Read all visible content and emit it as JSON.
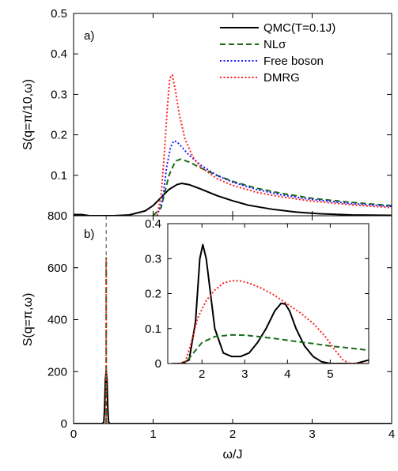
{
  "chart_data": [
    {
      "type": "line",
      "panel_label": "a)",
      "ylabel": "S(q=π/10,ω)",
      "xlim": [
        0,
        4
      ],
      "ylim": [
        0,
        0.5
      ],
      "xticks": [
        0,
        1,
        2,
        3,
        4
      ],
      "yticks": [
        0,
        0.1,
        0.2,
        0.3,
        0.4,
        0.5
      ],
      "ytick_labels": [
        "",
        "0.1",
        "0.2",
        "0.3",
        "0.4",
        "0.5"
      ],
      "legend_position": "top-right",
      "series": [
        {
          "name": "QMC(T=0.1J)",
          "color": "#000000",
          "style": "solid",
          "x": [
            0,
            0.1,
            0.2,
            0.3,
            0.5,
            0.7,
            0.9,
            1.0,
            1.1,
            1.2,
            1.3,
            1.36,
            1.45,
            1.6,
            1.8,
            2.0,
            2.2,
            2.5,
            2.8,
            3.1,
            3.5,
            4.0
          ],
          "y": [
            0.003,
            0.003,
            0.0,
            0.0,
            0.0,
            0.002,
            0.012,
            0.025,
            0.045,
            0.065,
            0.077,
            0.08,
            0.077,
            0.066,
            0.05,
            0.037,
            0.026,
            0.016,
            0.009,
            0.005,
            0.002,
            0.001
          ]
        },
        {
          "name": "NLσ",
          "color": "#1a6b1a",
          "style": "dashed",
          "x": [
            1.0,
            1.1,
            1.2,
            1.28,
            1.35,
            1.45,
            1.6,
            1.8,
            2.0,
            2.3,
            2.6,
            3.0,
            3.5,
            4.0
          ],
          "y": [
            0.0,
            0.02,
            0.1,
            0.135,
            0.14,
            0.133,
            0.118,
            0.1,
            0.085,
            0.068,
            0.056,
            0.043,
            0.033,
            0.025
          ]
        },
        {
          "name": "Free boson",
          "color": "#1a1aff",
          "style": "dotted",
          "x": [
            1.05,
            1.12,
            1.17,
            1.22,
            1.26,
            1.3,
            1.36,
            1.45,
            1.6,
            1.8,
            2.0,
            2.3,
            2.6,
            3.0,
            3.5,
            4.0
          ],
          "y": [
            0.0,
            0.04,
            0.12,
            0.17,
            0.185,
            0.183,
            0.17,
            0.15,
            0.125,
            0.1,
            0.083,
            0.065,
            0.052,
            0.04,
            0.03,
            0.023
          ]
        },
        {
          "name": "DMRG",
          "color": "#ff2020",
          "style": "dotted",
          "x": [
            1.05,
            1.1,
            1.14,
            1.18,
            1.21,
            1.24,
            1.28,
            1.33,
            1.4,
            1.5,
            1.6,
            1.8,
            2.0,
            2.3,
            2.6,
            3.0,
            3.5,
            4.0
          ],
          "y": [
            0.0,
            0.05,
            0.15,
            0.27,
            0.34,
            0.348,
            0.31,
            0.25,
            0.19,
            0.145,
            0.12,
            0.092,
            0.075,
            0.058,
            0.047,
            0.036,
            0.027,
            0.02
          ]
        }
      ]
    },
    {
      "type": "line",
      "panel_label": "b)",
      "ylabel": "S(q=π,ω)",
      "xlabel": "ω/J",
      "xlim": [
        0,
        4
      ],
      "ylim": [
        0,
        800
      ],
      "xticks": [
        0,
        1,
        2,
        3,
        4
      ],
      "yticks": [
        0,
        200,
        400,
        600,
        800
      ],
      "reference_line_x": 0.41,
      "series": [
        {
          "name": "QMC(T=0.1J)",
          "color": "#000000",
          "style": "solid",
          "x": [
            0,
            0.3,
            0.36,
            0.38,
            0.39,
            0.4,
            0.41,
            0.42,
            0.43,
            0.44,
            0.46,
            0.5,
            4.0
          ],
          "y": [
            0,
            0,
            0,
            5,
            60,
            170,
            200,
            170,
            60,
            5,
            0,
            0,
            0
          ]
        },
        {
          "name": "NLσ",
          "color": "#1a6b1a",
          "style": "dashed",
          "x": [
            0.41,
            0.41
          ],
          "y": [
            0,
            640
          ]
        },
        {
          "name": "DMRG",
          "color": "#ff2020",
          "style": "dotted",
          "x": [
            0.41,
            0.41
          ],
          "y": [
            0,
            640
          ]
        }
      ],
      "inset": {
        "xlim": [
          1.2,
          5.9
        ],
        "ylim": [
          0,
          0.4
        ],
        "xticks": [
          2,
          3,
          4,
          5
        ],
        "yticks": [
          0,
          0.1,
          0.2,
          0.3,
          0.4
        ],
        "series": [
          {
            "name": "QMC(T=0.1J)",
            "color": "#000000",
            "style": "solid",
            "x": [
              1.3,
              1.5,
              1.7,
              1.85,
              1.95,
              2.02,
              2.1,
              2.2,
              2.3,
              2.5,
              2.7,
              2.9,
              3.1,
              3.3,
              3.5,
              3.7,
              3.85,
              3.95,
              4.05,
              4.2,
              4.4,
              4.6,
              4.8,
              5.0,
              5.2,
              5.4,
              5.6,
              5.9
            ],
            "y": [
              0.0,
              0.0,
              0.01,
              0.12,
              0.3,
              0.34,
              0.3,
              0.2,
              0.1,
              0.03,
              0.02,
              0.02,
              0.03,
              0.06,
              0.1,
              0.15,
              0.172,
              0.17,
              0.15,
              0.1,
              0.05,
              0.02,
              0.005,
              0.0,
              0.0,
              0.0,
              0.0,
              0.01
            ]
          },
          {
            "name": "NLσ",
            "color": "#1a6b1a",
            "style": "dashed",
            "x": [
              1.3,
              1.6,
              1.8,
              2.0,
              2.3,
              2.7,
              3.0,
              3.4,
              3.8,
              4.2,
              4.6,
              5.0,
              5.4,
              5.9
            ],
            "y": [
              0.0,
              0.0,
              0.03,
              0.06,
              0.077,
              0.082,
              0.081,
              0.076,
              0.07,
              0.063,
              0.057,
              0.05,
              0.045,
              0.038
            ]
          },
          {
            "name": "DMRG",
            "color": "#ff2020",
            "style": "dotted",
            "x": [
              1.3,
              1.6,
              1.75,
              1.9,
              2.1,
              2.3,
              2.5,
              2.7,
              2.9,
              3.1,
              3.4,
              3.7,
              4.0,
              4.3,
              4.6,
              4.9,
              5.1,
              5.3,
              5.45,
              5.6,
              5.9
            ],
            "y": [
              0.0,
              0.0,
              0.06,
              0.13,
              0.18,
              0.21,
              0.23,
              0.237,
              0.236,
              0.23,
              0.215,
              0.195,
              0.17,
              0.145,
              0.115,
              0.075,
              0.04,
              0.01,
              0.0,
              0.0,
              0.0
            ]
          }
        ]
      }
    }
  ]
}
